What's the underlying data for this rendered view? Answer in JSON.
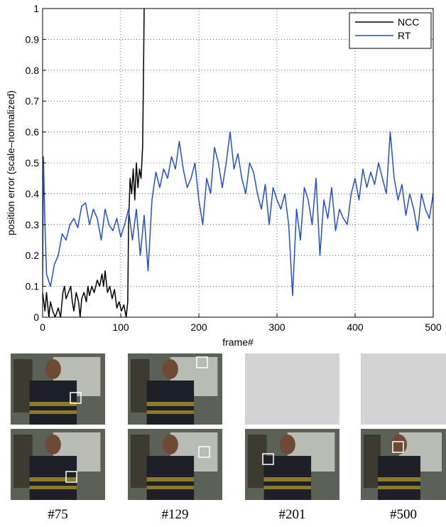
{
  "chart_data": {
    "type": "line",
    "xlabel": "frame#",
    "ylabel": "position error (scale–normalized)",
    "xlim": [
      0,
      500
    ],
    "xticks": [
      0,
      100,
      200,
      300,
      400,
      500
    ],
    "ylim": [
      0,
      1
    ],
    "yticks": [
      0,
      0.1,
      0.2,
      0.3,
      0.4,
      0.5,
      0.6,
      0.7,
      0.8,
      0.9,
      1
    ],
    "grid": true,
    "legend": "upper right",
    "series": [
      {
        "name": "NCC",
        "color": "#000000",
        "x": [
          0,
          3,
          5,
          8,
          10,
          13,
          16,
          20,
          23,
          26,
          28,
          30,
          33,
          36,
          38,
          40,
          43,
          46,
          48,
          50,
          53,
          56,
          58,
          60,
          63,
          66,
          70,
          73,
          76,
          78,
          80,
          83,
          86,
          89,
          92,
          95,
          98,
          101,
          104,
          107,
          109,
          110,
          112,
          114,
          116,
          118,
          120,
          122,
          124,
          126,
          128,
          129,
          130
        ],
        "values": [
          0.08,
          0.02,
          0.08,
          0,
          0.05,
          0.02,
          0,
          0.03,
          0,
          0.08,
          0.1,
          0.06,
          0.08,
          0.1,
          0.05,
          0.02,
          0.08,
          0.05,
          0,
          0.06,
          0.08,
          0.05,
          0.1,
          0.07,
          0.1,
          0.08,
          0.12,
          0.1,
          0.14,
          0.1,
          0.15,
          0.08,
          0.1,
          0.06,
          0.09,
          0.03,
          0.05,
          0.02,
          0.04,
          0,
          0.05,
          0.3,
          0.45,
          0.4,
          0.48,
          0.38,
          0.5,
          0.42,
          0.48,
          0.45,
          0.55,
          0.75,
          1
        ]
      },
      {
        "name": "RT",
        "color": "#1f4fd8",
        "x": [
          0,
          1,
          3,
          5,
          10,
          15,
          20,
          25,
          30,
          35,
          40,
          45,
          50,
          55,
          60,
          65,
          70,
          75,
          80,
          85,
          90,
          95,
          100,
          105,
          110,
          115,
          120,
          125,
          130,
          135,
          140,
          145,
          150,
          155,
          160,
          165,
          170,
          175,
          180,
          185,
          190,
          195,
          200,
          205,
          210,
          215,
          220,
          225,
          230,
          235,
          240,
          245,
          250,
          255,
          260,
          265,
          270,
          275,
          280,
          285,
          290,
          295,
          300,
          305,
          310,
          315,
          320,
          325,
          330,
          335,
          340,
          345,
          350,
          355,
          360,
          365,
          370,
          375,
          380,
          385,
          390,
          395,
          400,
          405,
          410,
          415,
          420,
          425,
          430,
          435,
          440,
          445,
          450,
          455,
          460,
          465,
          470,
          475,
          480,
          485,
          490,
          495,
          500
        ],
        "values": [
          0.1,
          0.52,
          0.3,
          0.14,
          0.1,
          0.17,
          0.2,
          0.27,
          0.25,
          0.3,
          0.32,
          0.29,
          0.36,
          0.37,
          0.3,
          0.35,
          0.32,
          0.25,
          0.35,
          0.3,
          0.28,
          0.32,
          0.26,
          0.3,
          0.35,
          0.25,
          0.35,
          0.2,
          0.33,
          0.15,
          0.38,
          0.47,
          0.42,
          0.48,
          0.45,
          0.52,
          0.48,
          0.57,
          0.48,
          0.42,
          0.45,
          0.5,
          0.38,
          0.3,
          0.45,
          0.4,
          0.55,
          0.5,
          0.42,
          0.5,
          0.6,
          0.48,
          0.53,
          0.45,
          0.4,
          0.5,
          0.47,
          0.4,
          0.35,
          0.43,
          0.3,
          0.42,
          0.38,
          0.35,
          0.4,
          0.3,
          0.07,
          0.35,
          0.25,
          0.42,
          0.38,
          0.3,
          0.45,
          0.2,
          0.38,
          0.32,
          0.42,
          0.28,
          0.35,
          0.32,
          0.3,
          0.4,
          0.45,
          0.38,
          0.48,
          0.42,
          0.47,
          0.43,
          0.5,
          0.45,
          0.4,
          0.6,
          0.45,
          0.38,
          0.43,
          0.33,
          0.4,
          0.35,
          0.28,
          0.4,
          0.35,
          0.32,
          0.4
        ]
      }
    ]
  },
  "frame_labels": [
    "#75",
    "#129",
    "#201",
    "#500"
  ]
}
